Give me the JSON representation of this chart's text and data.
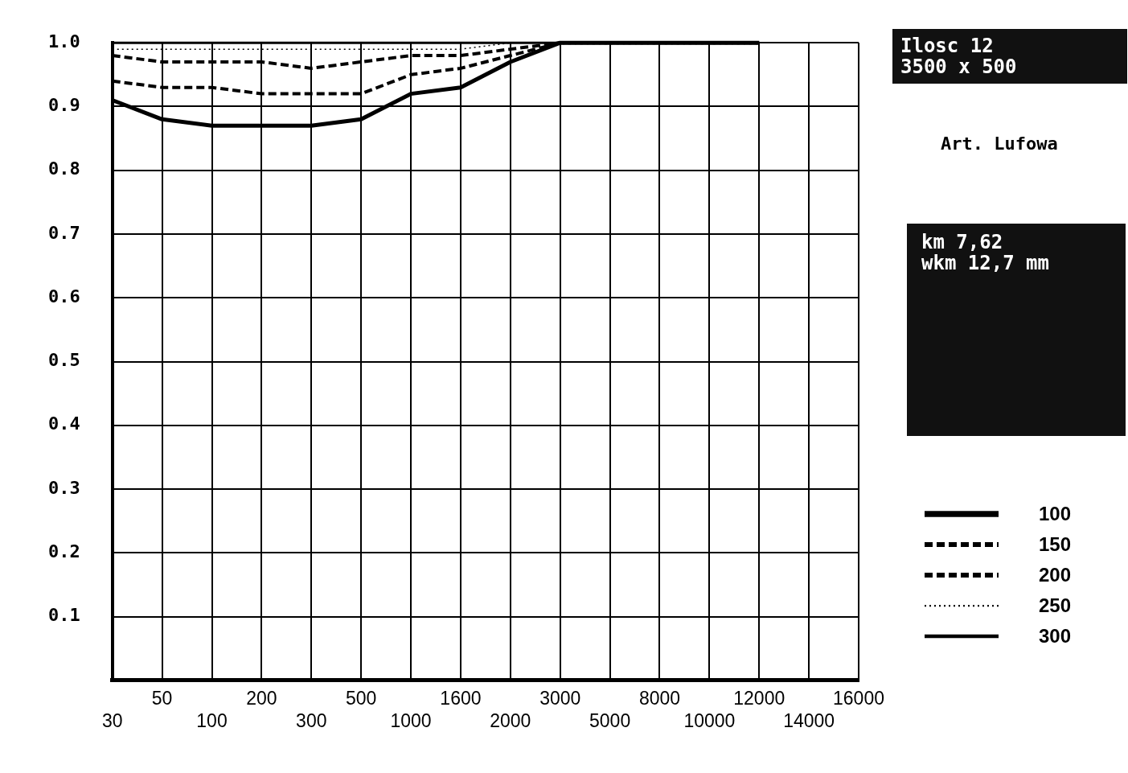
{
  "chart_data": {
    "type": "line",
    "categories": [
      "30",
      "50",
      "100",
      "200",
      "300",
      "500",
      "1000",
      "1600",
      "2000",
      "3000",
      "5000",
      "8000",
      "10000",
      "12000",
      "14000",
      "16000"
    ],
    "series": [
      {
        "name": "100",
        "color": "#000000",
        "line_style": "solid",
        "values": [
          0.91,
          0.88,
          0.87,
          0.87,
          0.87,
          0.88,
          0.92,
          0.93,
          0.97,
          1.0,
          1.0,
          1.0,
          1.0,
          1.0,
          null,
          null
        ]
      },
      {
        "name": "150",
        "color": "#000000",
        "line_style": "dashed",
        "values": [
          0.94,
          0.93,
          0.93,
          0.92,
          0.92,
          0.92,
          0.95,
          0.96,
          0.98,
          1.0,
          1.0,
          1.0,
          1.0,
          1.0,
          null,
          null
        ]
      },
      {
        "name": "200",
        "color": "#000000",
        "line_style": "dashed",
        "values": [
          0.98,
          0.97,
          0.97,
          0.97,
          0.96,
          0.97,
          0.98,
          0.98,
          0.99,
          1.0,
          1.0,
          1.0,
          1.0,
          1.0,
          null,
          null
        ]
      },
      {
        "name": "250",
        "color": "#000000",
        "line_style": "dotted",
        "values": [
          0.99,
          0.99,
          0.99,
          0.99,
          0.99,
          0.99,
          0.99,
          0.99,
          1.0,
          1.0,
          1.0,
          1.0,
          1.0,
          1.0,
          null,
          null
        ]
      },
      {
        "name": "300",
        "color": "#000000",
        "line_style": "solid",
        "values": [
          1.0,
          1.0,
          1.0,
          1.0,
          1.0,
          1.0,
          1.0,
          1.0,
          1.0,
          1.0,
          1.0,
          1.0,
          1.0,
          1.0,
          null,
          null
        ]
      }
    ],
    "ylim": [
      0,
      1.0
    ],
    "yticks": [
      {
        "value": 0,
        "label": null
      },
      0.1,
      0.2,
      0.3,
      0.4,
      0.5,
      0.6,
      0.7,
      0.8,
      0.9,
      {
        "value": 1.0,
        "label": "1.0"
      }
    ],
    "grid": true,
    "legend": "right",
    "marker": "none",
    "annotations": [
      "Ilosc 12",
      "3500 x 500",
      "Art. Lufowa",
      "km 7,62",
      "wkm 12,7 mm"
    ]
  }
}
